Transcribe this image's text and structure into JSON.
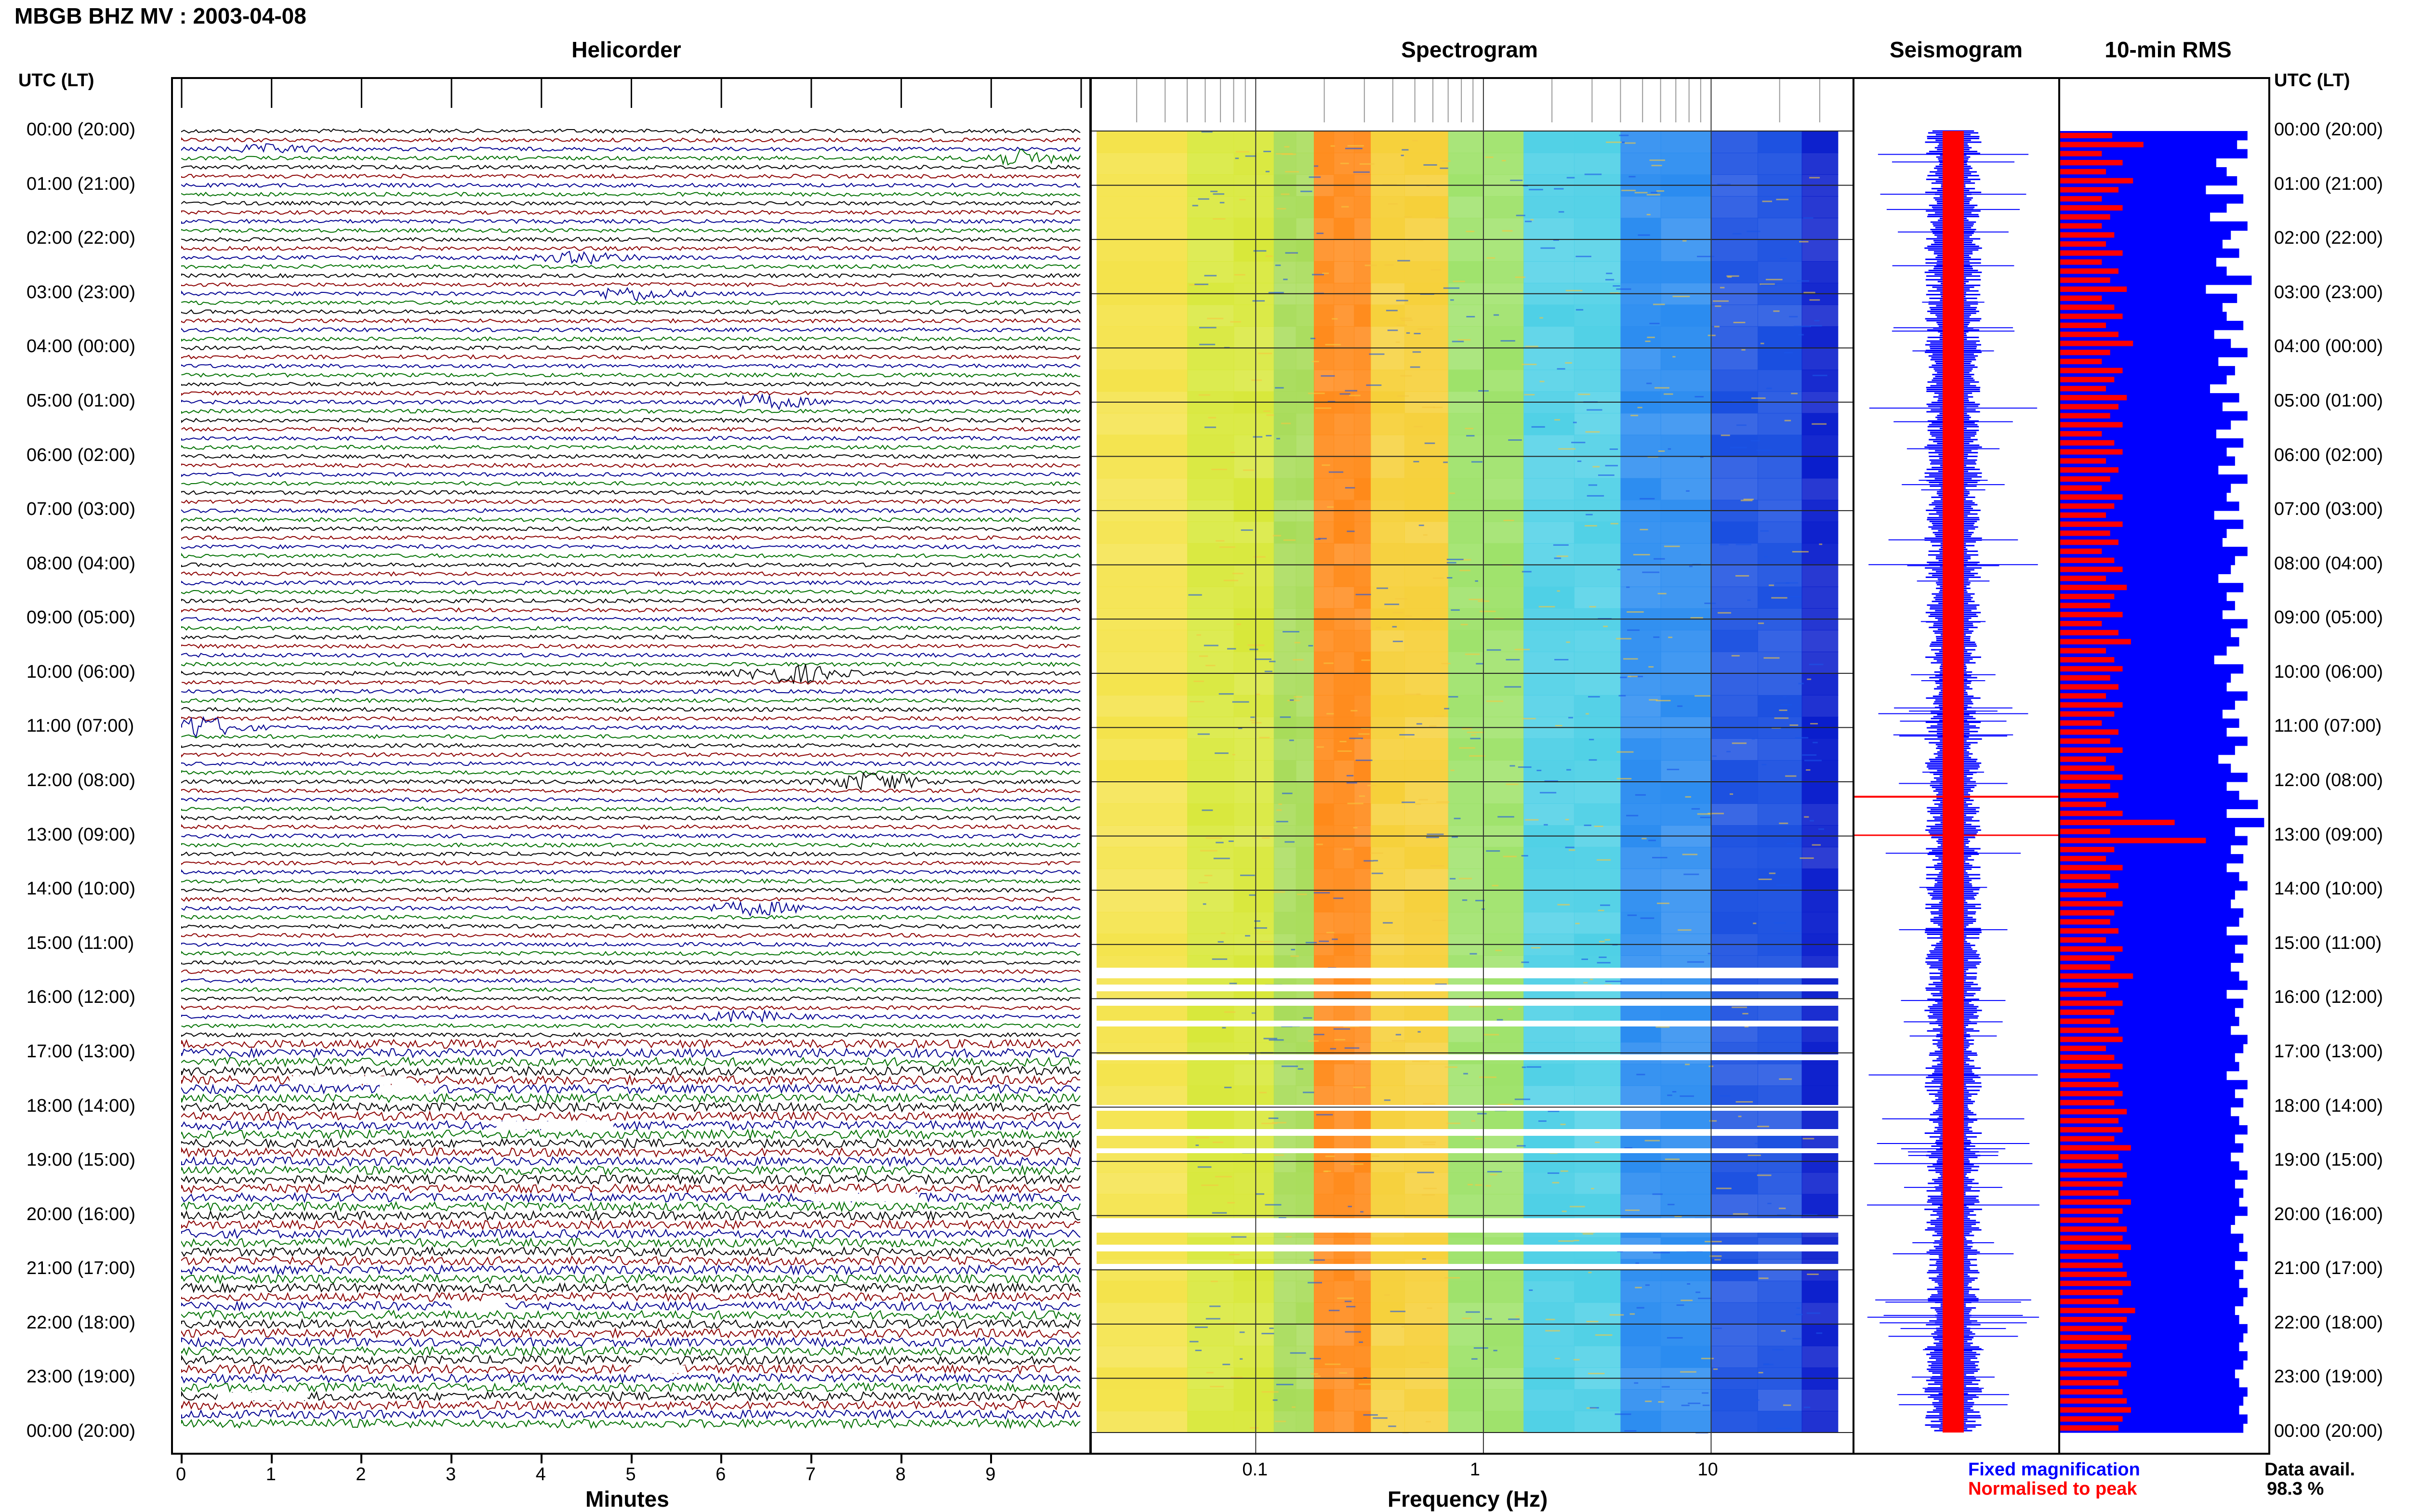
{
  "title": "MBGB BHZ MV : 2003-04-08",
  "panels": {
    "helicorder": "Helicorder",
    "spectrogram": "Spectrogram",
    "seismogram": "Seismogram",
    "rms": "10-min RMS"
  },
  "axis_label_left": "UTC (LT)",
  "axis_label_right": "UTC (LT)",
  "hours": [
    "00:00 (20:00)",
    "01:00 (21:00)",
    "02:00 (22:00)",
    "03:00 (23:00)",
    "04:00 (00:00)",
    "05:00 (01:00)",
    "06:00 (02:00)",
    "07:00 (03:00)",
    "08:00 (04:00)",
    "09:00 (05:00)",
    "10:00 (06:00)",
    "11:00 (07:00)",
    "12:00 (08:00)",
    "13:00 (09:00)",
    "14:00 (10:00)",
    "15:00 (11:00)",
    "16:00 (12:00)",
    "17:00 (13:00)",
    "18:00 (14:00)",
    "19:00 (15:00)",
    "20:00 (16:00)",
    "21:00 (17:00)",
    "22:00 (18:00)",
    "23:00 (19:00)",
    "00:00 (20:00)"
  ],
  "minutes_axis": {
    "label": "Minutes",
    "ticks": [
      "0",
      "1",
      "2",
      "3",
      "4",
      "5",
      "6",
      "7",
      "8",
      "9"
    ]
  },
  "frequency_axis": {
    "label": "Frequency (Hz)",
    "ticks": [
      "0.1",
      "1",
      "10"
    ]
  },
  "legend": {
    "fixed": "Fixed magnification",
    "normalised": "Normalised to peak"
  },
  "data_avail": {
    "label": "Data avail.",
    "value": "98.3 %"
  },
  "colors": {
    "fixed": "#0000ff",
    "normalised": "#ff0000",
    "trace_black": "#000000",
    "trace_red": "#8b0000",
    "trace_green": "#007000",
    "trace_blue": "#000090"
  },
  "chart_data": {
    "type": "heatmap",
    "station": "MBGB BHZ MV",
    "date": "2003-04-08",
    "helicorder": {
      "x_unit": "minutes",
      "xlim": [
        0,
        10
      ],
      "rows_per_hour": 6,
      "trace_colors": [
        "black",
        "red",
        "blue",
        "green"
      ]
    },
    "spectrogram": {
      "x_scale": "log",
      "xlim_hz": [
        0.02,
        40
      ],
      "dominant_band_hz": [
        0.2,
        0.3
      ]
    },
    "rms_10min": {
      "fixed_magnification": [
        0.9,
        0.85,
        0.9,
        0.75,
        0.8,
        0.85,
        0.7,
        0.88,
        0.8,
        0.72,
        0.9,
        0.82,
        0.78,
        0.86,
        0.75,
        0.8,
        0.92,
        0.7,
        0.85,
        0.78,
        0.8,
        0.88,
        0.74,
        0.82,
        0.9,
        0.76,
        0.84,
        0.8,
        0.72,
        0.86,
        0.78,
        0.9,
        0.82,
        0.75,
        0.88,
        0.8,
        0.84,
        0.76,
        0.9,
        0.82,
        0.8,
        0.86,
        0.74,
        0.88,
        0.8,
        0.78,
        0.9,
        0.84,
        0.82,
        0.76,
        0.88,
        0.8,
        0.84,
        0.78,
        0.9,
        0.82,
        0.86,
        0.8,
        0.74,
        0.88,
        0.82,
        0.8,
        0.9,
        0.84,
        0.78,
        0.86,
        0.8,
        0.9,
        0.84,
        0.76,
        0.82,
        0.9,
        0.8,
        0.86,
        0.95,
        0.8,
        0.98,
        0.84,
        0.9,
        0.82,
        0.88,
        0.8,
        0.86,
        0.9,
        0.84,
        0.82,
        0.88,
        0.86,
        0.8,
        0.9,
        0.84,
        0.88,
        0.82,
        0.86,
        0.9,
        0.8,
        0.88,
        0.84,
        0.86,
        0.82,
        0.9,
        0.88,
        0.84,
        0.86,
        0.8,
        0.9,
        0.84,
        0.88,
        0.82,
        0.86,
        0.9,
        0.84,
        0.88,
        0.82,
        0.86,
        0.9,
        0.84,
        0.88,
        0.86,
        0.9,
        0.84,
        0.82,
        0.88,
        0.86,
        0.9,
        0.84,
        0.88,
        0.86,
        0.9,
        0.88,
        0.84,
        0.86,
        0.9,
        0.88,
        0.86,
        0.9,
        0.88,
        0.84,
        0.86,
        0.9,
        0.88,
        0.86,
        0.9,
        0.88
      ],
      "normalised_to_peak": [
        0.25,
        0.4,
        0.2,
        0.3,
        0.22,
        0.35,
        0.28,
        0.2,
        0.3,
        0.24,
        0.2,
        0.26,
        0.22,
        0.3,
        0.2,
        0.28,
        0.24,
        0.32,
        0.2,
        0.26,
        0.3,
        0.22,
        0.28,
        0.35,
        0.24,
        0.2,
        0.3,
        0.26,
        0.22,
        0.32,
        0.28,
        0.24,
        0.3,
        0.2,
        0.26,
        0.3,
        0.22,
        0.28,
        0.24,
        0.2,
        0.3,
        0.26,
        0.22,
        0.3,
        0.24,
        0.28,
        0.2,
        0.26,
        0.3,
        0.22,
        0.32,
        0.26,
        0.24,
        0.3,
        0.2,
        0.28,
        0.34,
        0.22,
        0.26,
        0.3,
        0.24,
        0.28,
        0.22,
        0.3,
        0.26,
        0.2,
        0.28,
        0.24,
        0.3,
        0.22,
        0.26,
        0.3,
        0.24,
        0.28,
        0.22,
        0.3,
        0.55,
        0.24,
        0.7,
        0.26,
        0.22,
        0.3,
        0.24,
        0.28,
        0.22,
        0.3,
        0.26,
        0.24,
        0.28,
        0.22,
        0.3,
        0.26,
        0.24,
        0.35,
        0.28,
        0.22,
        0.3,
        0.26,
        0.24,
        0.28,
        0.3,
        0.22,
        0.26,
        0.3,
        0.24,
        0.28,
        0.3,
        0.26,
        0.32,
        0.28,
        0.3,
        0.26,
        0.34,
        0.28,
        0.3,
        0.32,
        0.3,
        0.28,
        0.34,
        0.3,
        0.28,
        0.32,
        0.3,
        0.34,
        0.28,
        0.3,
        0.32,
        0.34,
        0.3,
        0.28,
        0.36,
        0.32,
        0.3,
        0.34,
        0.32,
        0.3,
        0.34,
        0.32,
        0.28,
        0.3,
        0.32,
        0.34,
        0.3,
        0.28
      ]
    }
  }
}
